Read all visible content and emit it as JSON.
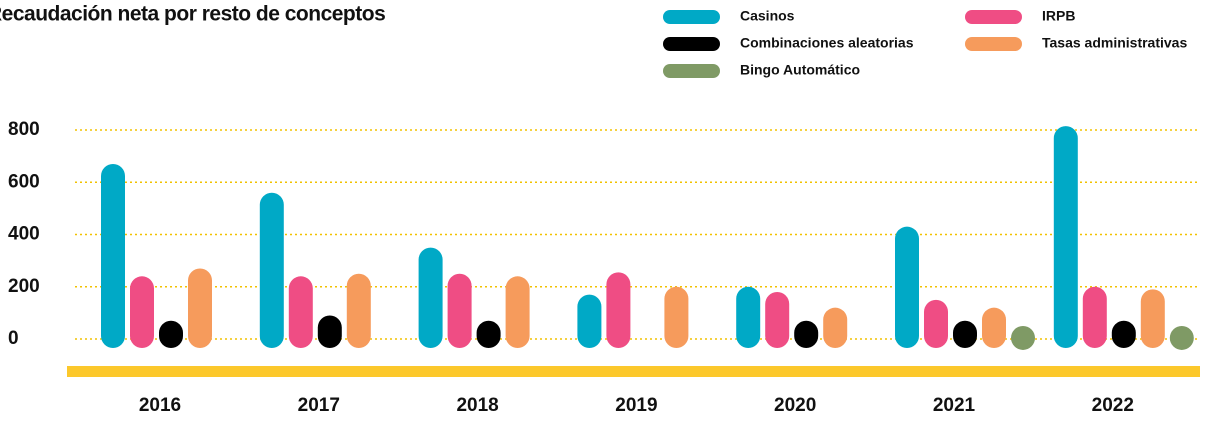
{
  "chart_data": {
    "type": "bar",
    "title": "Recaudación neta por resto de conceptos",
    "categories": [
      "2016",
      "2017",
      "2018",
      "2019",
      "2020",
      "2021",
      "2022"
    ],
    "series": [
      {
        "name": "Casinos",
        "color": "#00a9c6",
        "values": [
          670,
          560,
          350,
          170,
          200,
          430,
          815
        ]
      },
      {
        "name": "IRPB",
        "color": "#ef4d84",
        "values": [
          240,
          240,
          250,
          255,
          180,
          150,
          200
        ]
      },
      {
        "name": "Combinaciones aleatorias",
        "color": "#000000",
        "values": [
          70,
          90,
          70,
          null,
          70,
          70,
          70
        ]
      },
      {
        "name": "Tasas administrativas",
        "color": "#f69b5c",
        "values": [
          270,
          250,
          240,
          200,
          120,
          120,
          190
        ]
      },
      {
        "name": "Bingo Automático",
        "color": "#7f9a65",
        "values": [
          null,
          null,
          null,
          null,
          null,
          50,
          50
        ]
      }
    ],
    "ylim": [
      0,
      800
    ],
    "yticks": [
      0,
      200,
      400,
      600,
      800
    ],
    "grid": true
  }
}
